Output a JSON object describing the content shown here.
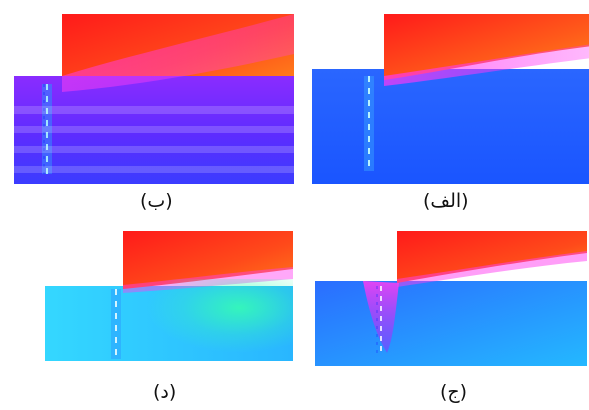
{
  "figure": {
    "panels": [
      {
        "id": "b",
        "caption": "(ب)"
      },
      {
        "id": "alef",
        "caption": "(الف)"
      },
      {
        "id": "d",
        "caption": "(د)"
      },
      {
        "id": "j",
        "caption": "(ج)"
      }
    ]
  },
  "colors": {
    "upper_hot": "#ff2a1a",
    "upper_orange": "#ff7a1a",
    "interface_pink": "#ff3df2",
    "lower_purple": "#7a2cff",
    "lower_blue": "#1e6bff",
    "lower_cyan": "#25c8ff",
    "plume_green": "#36ffb0"
  }
}
